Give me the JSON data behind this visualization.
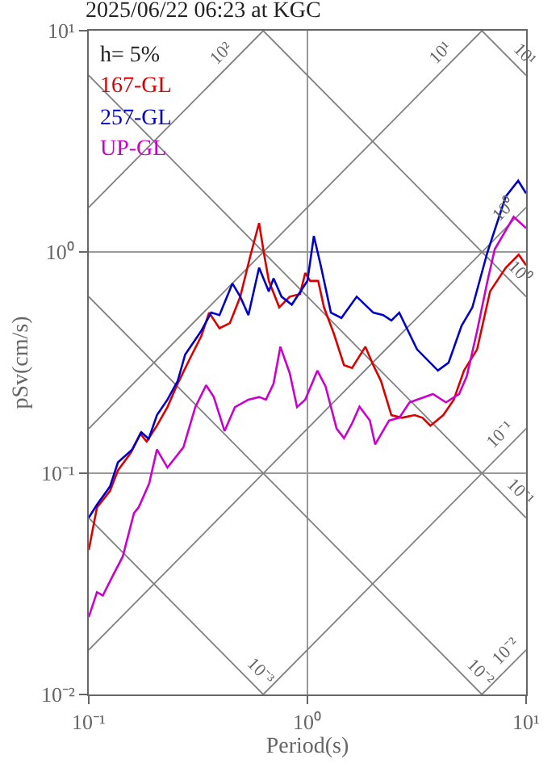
{
  "chart_data": {
    "type": "line",
    "title": "2025/06/22 06:23 at KGC",
    "xlabel": "Period(s)",
    "ylabel": "pSv(cm/s)",
    "log": "xy",
    "grid": true,
    "legend": "top left",
    "line_style": "solid",
    "marker": "none",
    "xlim": [
      0.1,
      10
    ],
    "ylim": [
      0.01,
      10
    ],
    "xticks": [
      {
        "value": 0.1,
        "label": "10⁻¹"
      },
      {
        "value": 1,
        "label": "10⁰"
      },
      {
        "value": 10,
        "label": "10¹"
      }
    ],
    "yticks": [
      {
        "value": 0.01,
        "label": "10⁻²"
      },
      {
        "value": 0.1,
        "label": "10⁻¹"
      },
      {
        "value": 1,
        "label": "10⁰"
      },
      {
        "value": 10,
        "label": "10¹"
      }
    ],
    "annotations": [
      "h= 5%",
      {
        "text": "10²",
        "x": 0.45,
        "y": 7.16
      },
      {
        "text": "10¹",
        "x": 4.5,
        "y": 7.16
      },
      {
        "text": "10¹",
        "x": 8.9,
        "y": 7.06
      },
      {
        "text": "10⁰",
        "x": 8.8,
        "y": 1.4
      },
      {
        "text": "10⁰",
        "x": 8.5,
        "y": 0.739
      },
      {
        "text": "10⁻¹",
        "x": 8.5,
        "y": 0.135
      },
      {
        "text": "10⁻¹",
        "x": 8.5,
        "y": 0.0739
      },
      {
        "text": "10⁻³",
        "x": 0.55,
        "y": 0.01142
      },
      {
        "text": "10⁻²",
        "x": 5.6,
        "y": 0.01122
      },
      {
        "text": "10⁻²",
        "x": 9.0,
        "y": 0.0143
      }
    ],
    "series": [
      {
        "color": "#808080",
        "x": [
          0.1,
          0.628
        ],
        "values": [
          1.59,
          10
        ]
      },
      {
        "color": "#808080",
        "x": [
          0.1,
          6.28
        ],
        "values": [
          0.159,
          10
        ]
      },
      {
        "color": "#808080",
        "x": [
          0.1,
          10
        ],
        "values": [
          0.0159,
          1.59
        ]
      },
      {
        "color": "#808080",
        "x": [
          0.628,
          10
        ],
        "values": [
          0.01,
          0.159
        ]
      },
      {
        "color": "#808080",
        "x": [
          6.28,
          10
        ],
        "values": [
          0.01,
          0.0159
        ]
      },
      {
        "color": "#808080",
        "x": [
          6.28,
          10
        ],
        "values": [
          10,
          6.28
        ]
      },
      {
        "color": "#808080",
        "x": [
          0.628,
          10
        ],
        "values": [
          10,
          0.628
        ]
      },
      {
        "color": "#808080",
        "x": [
          0.1,
          10
        ],
        "values": [
          6.28,
          0.0628
        ]
      },
      {
        "color": "#808080",
        "x": [
          0.1,
          6.28
        ],
        "values": [
          0.628,
          0.01
        ]
      },
      {
        "color": "#808080",
        "x": [
          0.1,
          0.628
        ],
        "values": [
          0.0628,
          0.01
        ]
      },
      {
        "name": "167-GL",
        "color": "#dd0000",
        "x": [
          0.1,
          0.109,
          0.125,
          0.136,
          0.156,
          0.172,
          0.184,
          0.205,
          0.229,
          0.255,
          0.292,
          0.327,
          0.355,
          0.396,
          0.442,
          0.493,
          0.55,
          0.601,
          0.631,
          0.666,
          0.743,
          0.83,
          0.925,
          0.977,
          1.03,
          1.12,
          1.19,
          1.32,
          1.47,
          1.6,
          1.84,
          2.0,
          2.17,
          2.42,
          2.7,
          3.09,
          3.36,
          3.65,
          4.18,
          4.67,
          5.2,
          5.97,
          6.84,
          8.07,
          9.25,
          10
        ],
        "values": [
          0.045,
          0.07,
          0.083,
          0.103,
          0.124,
          0.151,
          0.139,
          0.164,
          0.199,
          0.254,
          0.334,
          0.416,
          0.532,
          0.452,
          0.477,
          0.628,
          0.973,
          1.35,
          1.0,
          0.74,
          0.562,
          0.628,
          0.645,
          0.804,
          0.74,
          0.74,
          0.562,
          0.428,
          0.308,
          0.299,
          0.373,
          0.308,
          0.261,
          0.183,
          0.178,
          0.183,
          0.178,
          0.164,
          0.183,
          0.215,
          0.291,
          0.363,
          0.663,
          0.849,
          0.973,
          0.871
        ]
      },
      {
        "name": "257-GL",
        "color": "#0000cc",
        "x": [
          0.1,
          0.109,
          0.125,
          0.136,
          0.158,
          0.174,
          0.188,
          0.205,
          0.229,
          0.255,
          0.276,
          0.327,
          0.363,
          0.396,
          0.454,
          0.493,
          0.537,
          0.601,
          0.666,
          0.7,
          0.761,
          0.848,
          1.0,
          1.07,
          1.15,
          1.28,
          1.43,
          1.68,
          2.0,
          2.22,
          2.42,
          2.63,
          3.17,
          3.95,
          4.42,
          5.07,
          5.68,
          6.66,
          8.07,
          9.2,
          10
        ],
        "values": [
          0.063,
          0.072,
          0.087,
          0.112,
          0.128,
          0.153,
          0.143,
          0.183,
          0.215,
          0.261,
          0.344,
          0.44,
          0.532,
          0.518,
          0.72,
          0.628,
          0.518,
          0.849,
          0.663,
          0.76,
          0.628,
          0.578,
          0.74,
          1.18,
          0.871,
          0.532,
          0.503,
          0.628,
          0.532,
          0.518,
          0.49,
          0.532,
          0.363,
          0.291,
          0.316,
          0.464,
          0.562,
          1.0,
          1.78,
          2.1,
          1.84
        ]
      },
      {
        "name": "UP-GL",
        "color": "#cc00cc",
        "x": [
          0.1,
          0.109,
          0.116,
          0.128,
          0.143,
          0.161,
          0.169,
          0.189,
          0.205,
          0.229,
          0.271,
          0.307,
          0.344,
          0.373,
          0.418,
          0.466,
          0.537,
          0.601,
          0.646,
          0.7,
          0.752,
          0.83,
          0.896,
          0.977,
          1.11,
          1.21,
          1.36,
          1.47,
          1.6,
          1.73,
          1.93,
          2.04,
          2.36,
          2.63,
          2.93,
          3.17,
          3.75,
          4.3,
          4.94,
          5.36,
          5.97,
          6.66,
          7.19,
          8.77,
          10
        ],
        "values": [
          0.0224,
          0.029,
          0.028,
          0.034,
          0.042,
          0.066,
          0.07,
          0.09,
          0.128,
          0.106,
          0.131,
          0.199,
          0.25,
          0.221,
          0.155,
          0.199,
          0.215,
          0.221,
          0.215,
          0.254,
          0.373,
          0.283,
          0.199,
          0.215,
          0.291,
          0.247,
          0.159,
          0.144,
          0.168,
          0.2,
          0.173,
          0.135,
          0.173,
          0.178,
          0.209,
          0.215,
          0.228,
          0.209,
          0.228,
          0.275,
          0.44,
          0.74,
          1.03,
          1.44,
          1.28
        ]
      }
    ]
  }
}
